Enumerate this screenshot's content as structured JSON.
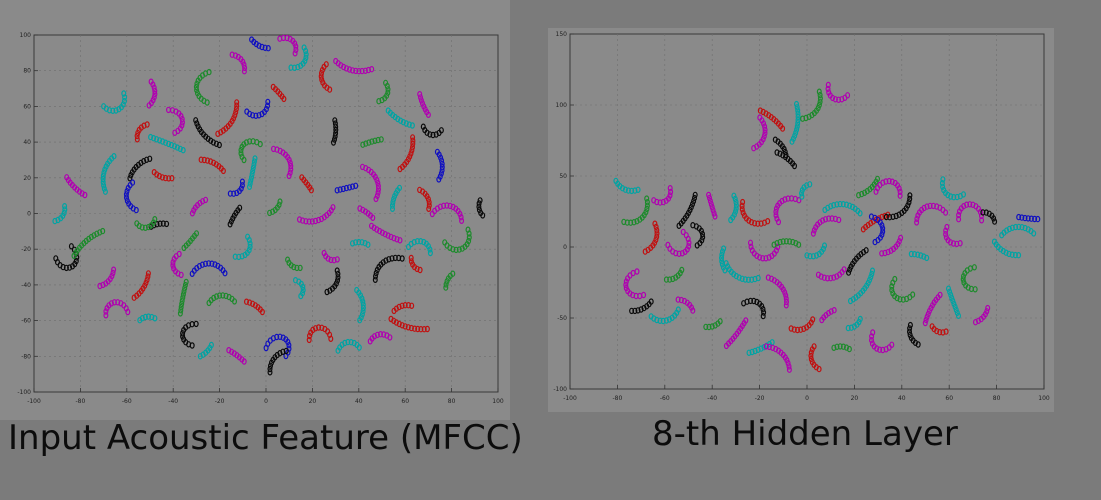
{
  "captions": {
    "left": "Input Acoustic Feature (MFCC)",
    "right": "8-th Hidden Layer"
  },
  "colors": {
    "background": "#7b7b7b",
    "plot_area": "#8a8a8a",
    "series": [
      "#0a0a0a",
      "#1d8a2c",
      "#b000b0",
      "#00a3a3",
      "#c01010",
      "#1010c0"
    ]
  },
  "chart_data": [
    {
      "type": "scatter",
      "xlim": [
        -100,
        100
      ],
      "ylim": [
        -100,
        100
      ],
      "xticks": [
        "-100",
        "-80",
        "-60",
        "-40",
        "-20",
        "0",
        "20",
        "40",
        "60",
        "80",
        "100"
      ],
      "yticks": [
        "100",
        "80",
        "60",
        "40",
        "20",
        "0",
        "-20",
        "-40",
        "-60",
        "-80",
        "-100"
      ],
      "grid": true,
      "clusters": [
        {
          "x": -47,
          "y": -6,
          "s": 0
        },
        {
          "x": -33,
          "y": -16,
          "s": 1
        },
        {
          "x": -68,
          "y": -38,
          "s": 2
        },
        {
          "x": -53,
          "y": -42,
          "s": 4
        },
        {
          "x": -26,
          "y": 43,
          "s": 0
        },
        {
          "x": -10,
          "y": 38,
          "s": 1
        },
        {
          "x": -36,
          "y": 52,
          "s": 2
        },
        {
          "x": -42,
          "y": 39,
          "s": 3
        },
        {
          "x": -15,
          "y": 51,
          "s": 4
        },
        {
          "x": -3,
          "y": 55,
          "s": 5
        },
        {
          "x": -10,
          "y": 85,
          "s": 2
        },
        {
          "x": -3,
          "y": 94,
          "s": 5
        },
        {
          "x": 12,
          "y": 96,
          "s": 2
        },
        {
          "x": 16,
          "y": 84,
          "s": 3
        },
        {
          "x": 6,
          "y": 67,
          "s": 4
        },
        {
          "x": 24,
          "y": 75,
          "s": 4
        },
        {
          "x": 38,
          "y": 80,
          "s": 2
        },
        {
          "x": 52,
          "y": 66,
          "s": 1
        },
        {
          "x": 58,
          "y": 52,
          "s": 3
        },
        {
          "x": 68,
          "y": 60,
          "s": 2
        },
        {
          "x": 30,
          "y": 45,
          "s": 0
        },
        {
          "x": 45,
          "y": 40,
          "s": 1
        },
        {
          "x": 62,
          "y": 32,
          "s": 4
        },
        {
          "x": 76,
          "y": 26,
          "s": 5
        },
        {
          "x": 48,
          "y": 18,
          "s": 2
        },
        {
          "x": 55,
          "y": 8,
          "s": 3
        },
        {
          "x": 70,
          "y": 8,
          "s": 4
        },
        {
          "x": 80,
          "y": 4,
          "s": 2
        },
        {
          "x": 92,
          "y": 2,
          "s": 0
        },
        {
          "x": 40,
          "y": -16,
          "s": 3
        },
        {
          "x": 52,
          "y": -12,
          "s": 2
        },
        {
          "x": 68,
          "y": -16,
          "s": 3
        },
        {
          "x": 84,
          "y": -20,
          "s": 1
        },
        {
          "x": 50,
          "y": -28,
          "s": 0
        },
        {
          "x": 64,
          "y": -30,
          "s": 4
        },
        {
          "x": 78,
          "y": -38,
          "s": 1
        },
        {
          "x": 42,
          "y": -52,
          "s": 3
        },
        {
          "x": 58,
          "y": -52,
          "s": 4
        },
        {
          "x": 48,
          "y": -68,
          "s": 2
        },
        {
          "x": 36,
          "y": -72,
          "s": 3
        },
        {
          "x": 22,
          "y": -64,
          "s": 4
        },
        {
          "x": 8,
          "y": -70,
          "s": 5
        },
        {
          "x": 3,
          "y": -82,
          "s": 0
        },
        {
          "x": -12,
          "y": -80,
          "s": 2
        },
        {
          "x": -26,
          "y": -78,
          "s": 3
        },
        {
          "x": -36,
          "y": -68,
          "s": 0
        },
        {
          "x": -52,
          "y": -58,
          "s": 3
        },
        {
          "x": -66,
          "y": -50,
          "s": 2
        },
        {
          "x": -84,
          "y": -30,
          "s": 0
        },
        {
          "x": -78,
          "y": -16,
          "s": 1
        },
        {
          "x": -88,
          "y": -2,
          "s": 3
        },
        {
          "x": -82,
          "y": 14,
          "s": 2
        },
        {
          "x": -70,
          "y": 22,
          "s": 3
        },
        {
          "x": -56,
          "y": 26,
          "s": 0
        },
        {
          "x": -60,
          "y": 8,
          "s": 5
        },
        {
          "x": -52,
          "y": -8,
          "s": 1
        },
        {
          "x": -64,
          "y": 58,
          "s": 3
        },
        {
          "x": -55,
          "y": 46,
          "s": 4
        },
        {
          "x": -48,
          "y": 66,
          "s": 2
        },
        {
          "x": -30,
          "y": 70,
          "s": 1
        },
        {
          "x": -22,
          "y": 28,
          "s": 4
        },
        {
          "x": -6,
          "y": 22,
          "s": 3
        },
        {
          "x": 10,
          "y": 30,
          "s": 2
        },
        {
          "x": 18,
          "y": 16,
          "s": 4
        },
        {
          "x": -30,
          "y": 4,
          "s": 2
        },
        {
          "x": -14,
          "y": -2,
          "s": 0
        },
        {
          "x": 4,
          "y": 2,
          "s": 1
        },
        {
          "x": 22,
          "y": -4,
          "s": 2
        },
        {
          "x": -24,
          "y": -28,
          "s": 5
        },
        {
          "x": -8,
          "y": -22,
          "s": 3
        },
        {
          "x": 12,
          "y": -30,
          "s": 1
        },
        {
          "x": 28,
          "y": -26,
          "s": 2
        },
        {
          "x": -20,
          "y": -46,
          "s": 1
        },
        {
          "x": -4,
          "y": -52,
          "s": 4
        },
        {
          "x": 16,
          "y": -42,
          "s": 3
        },
        {
          "x": 30,
          "y": -40,
          "s": 0
        },
        {
          "x": -40,
          "y": -30,
          "s": 2
        },
        {
          "x": -12,
          "y": 12,
          "s": 5
        },
        {
          "x": 34,
          "y": 14,
          "s": 5
        },
        {
          "x": 44,
          "y": 0,
          "s": 2
        },
        {
          "x": -44,
          "y": 20,
          "s": 4
        },
        {
          "x": -36,
          "y": -48,
          "s": 1
        },
        {
          "x": 62,
          "y": -64,
          "s": 4
        },
        {
          "x": 72,
          "y": 44,
          "s": 0
        }
      ]
    },
    {
      "type": "scatter",
      "xlim": [
        -100,
        100
      ],
      "ylim": [
        -100,
        150
      ],
      "xticks": [
        "-100",
        "-80",
        "-60",
        "-40",
        "-20",
        "0",
        "20",
        "40",
        "60",
        "80",
        "100"
      ],
      "yticks": [
        "150",
        "100",
        "50",
        "0",
        "-50",
        "-100"
      ],
      "grid": true,
      "clusters": [
        {
          "x": -76,
          "y": 40,
          "s": 3
        },
        {
          "x": -70,
          "y": 20,
          "s": 1
        },
        {
          "x": -60,
          "y": 32,
          "s": 2
        },
        {
          "x": -50,
          "y": 24,
          "s": 0
        },
        {
          "x": -40,
          "y": 28,
          "s": 2
        },
        {
          "x": -30,
          "y": 26,
          "s": 3
        },
        {
          "x": -64,
          "y": 4,
          "s": 4
        },
        {
          "x": -52,
          "y": -4,
          "s": 2
        },
        {
          "x": -44,
          "y": 8,
          "s": 0
        },
        {
          "x": -76,
          "y": -30,
          "s": 2
        },
        {
          "x": -70,
          "y": -44,
          "s": 0
        },
        {
          "x": -60,
          "y": -52,
          "s": 3
        },
        {
          "x": -50,
          "y": -40,
          "s": 2
        },
        {
          "x": -40,
          "y": -56,
          "s": 1
        },
        {
          "x": -30,
          "y": -62,
          "s": 2
        },
        {
          "x": -20,
          "y": -72,
          "s": 3
        },
        {
          "x": -10,
          "y": -76,
          "s": 2
        },
        {
          "x": 2,
          "y": -80,
          "s": 4
        },
        {
          "x": -20,
          "y": -40,
          "s": 0
        },
        {
          "x": -10,
          "y": -30,
          "s": 2
        },
        {
          "x": -28,
          "y": -22,
          "s": 3
        },
        {
          "x": -18,
          "y": -8,
          "s": 2
        },
        {
          "x": -8,
          "y": 4,
          "s": 1
        },
        {
          "x": -24,
          "y": 18,
          "s": 4
        },
        {
          "x": -12,
          "y": 30,
          "s": 2
        },
        {
          "x": -2,
          "y": 40,
          "s": 3
        },
        {
          "x": -18,
          "y": 78,
          "s": 2
        },
        {
          "x": -10,
          "y": 70,
          "s": 0
        },
        {
          "x": -4,
          "y": 86,
          "s": 3
        },
        {
          "x": 4,
          "y": 96,
          "s": 1
        },
        {
          "x": 12,
          "y": 104,
          "s": 2
        },
        {
          "x": -14,
          "y": 90,
          "s": 4
        },
        {
          "x": -8,
          "y": 62,
          "s": 0
        },
        {
          "x": 6,
          "y": 18,
          "s": 2
        },
        {
          "x": 16,
          "y": 30,
          "s": 3
        },
        {
          "x": 26,
          "y": 40,
          "s": 1
        },
        {
          "x": 36,
          "y": 46,
          "s": 2
        },
        {
          "x": 28,
          "y": 18,
          "s": 4
        },
        {
          "x": 40,
          "y": 24,
          "s": 0
        },
        {
          "x": 50,
          "y": 28,
          "s": 2
        },
        {
          "x": 60,
          "y": 36,
          "s": 3
        },
        {
          "x": 68,
          "y": 30,
          "s": 2
        },
        {
          "x": 78,
          "y": 22,
          "s": 0
        },
        {
          "x": 88,
          "y": 14,
          "s": 3
        },
        {
          "x": 94,
          "y": 20,
          "s": 5
        },
        {
          "x": 84,
          "y": -4,
          "s": 3
        },
        {
          "x": 60,
          "y": 4,
          "s": 2
        },
        {
          "x": 48,
          "y": -6,
          "s": 3
        },
        {
          "x": 36,
          "y": -2,
          "s": 2
        },
        {
          "x": 20,
          "y": -10,
          "s": 0
        },
        {
          "x": 10,
          "y": -22,
          "s": 2
        },
        {
          "x": 24,
          "y": -30,
          "s": 3
        },
        {
          "x": 38,
          "y": -36,
          "s": 1
        },
        {
          "x": 52,
          "y": -44,
          "s": 2
        },
        {
          "x": 62,
          "y": -40,
          "s": 3
        },
        {
          "x": 56,
          "y": -60,
          "s": 4
        },
        {
          "x": 44,
          "y": -64,
          "s": 0
        },
        {
          "x": 30,
          "y": -72,
          "s": 2
        },
        {
          "x": 20,
          "y": -56,
          "s": 3
        },
        {
          "x": 8,
          "y": -48,
          "s": 2
        },
        {
          "x": -2,
          "y": -58,
          "s": 4
        },
        {
          "x": 14,
          "y": -70,
          "s": 1
        },
        {
          "x": 66,
          "y": -24,
          "s": 1
        },
        {
          "x": 74,
          "y": -50,
          "s": 2
        },
        {
          "x": -56,
          "y": -22,
          "s": 1
        },
        {
          "x": -36,
          "y": -10,
          "s": 3
        },
        {
          "x": 4,
          "y": -6,
          "s": 3
        },
        {
          "x": 32,
          "y": 12,
          "s": 5
        }
      ]
    }
  ]
}
